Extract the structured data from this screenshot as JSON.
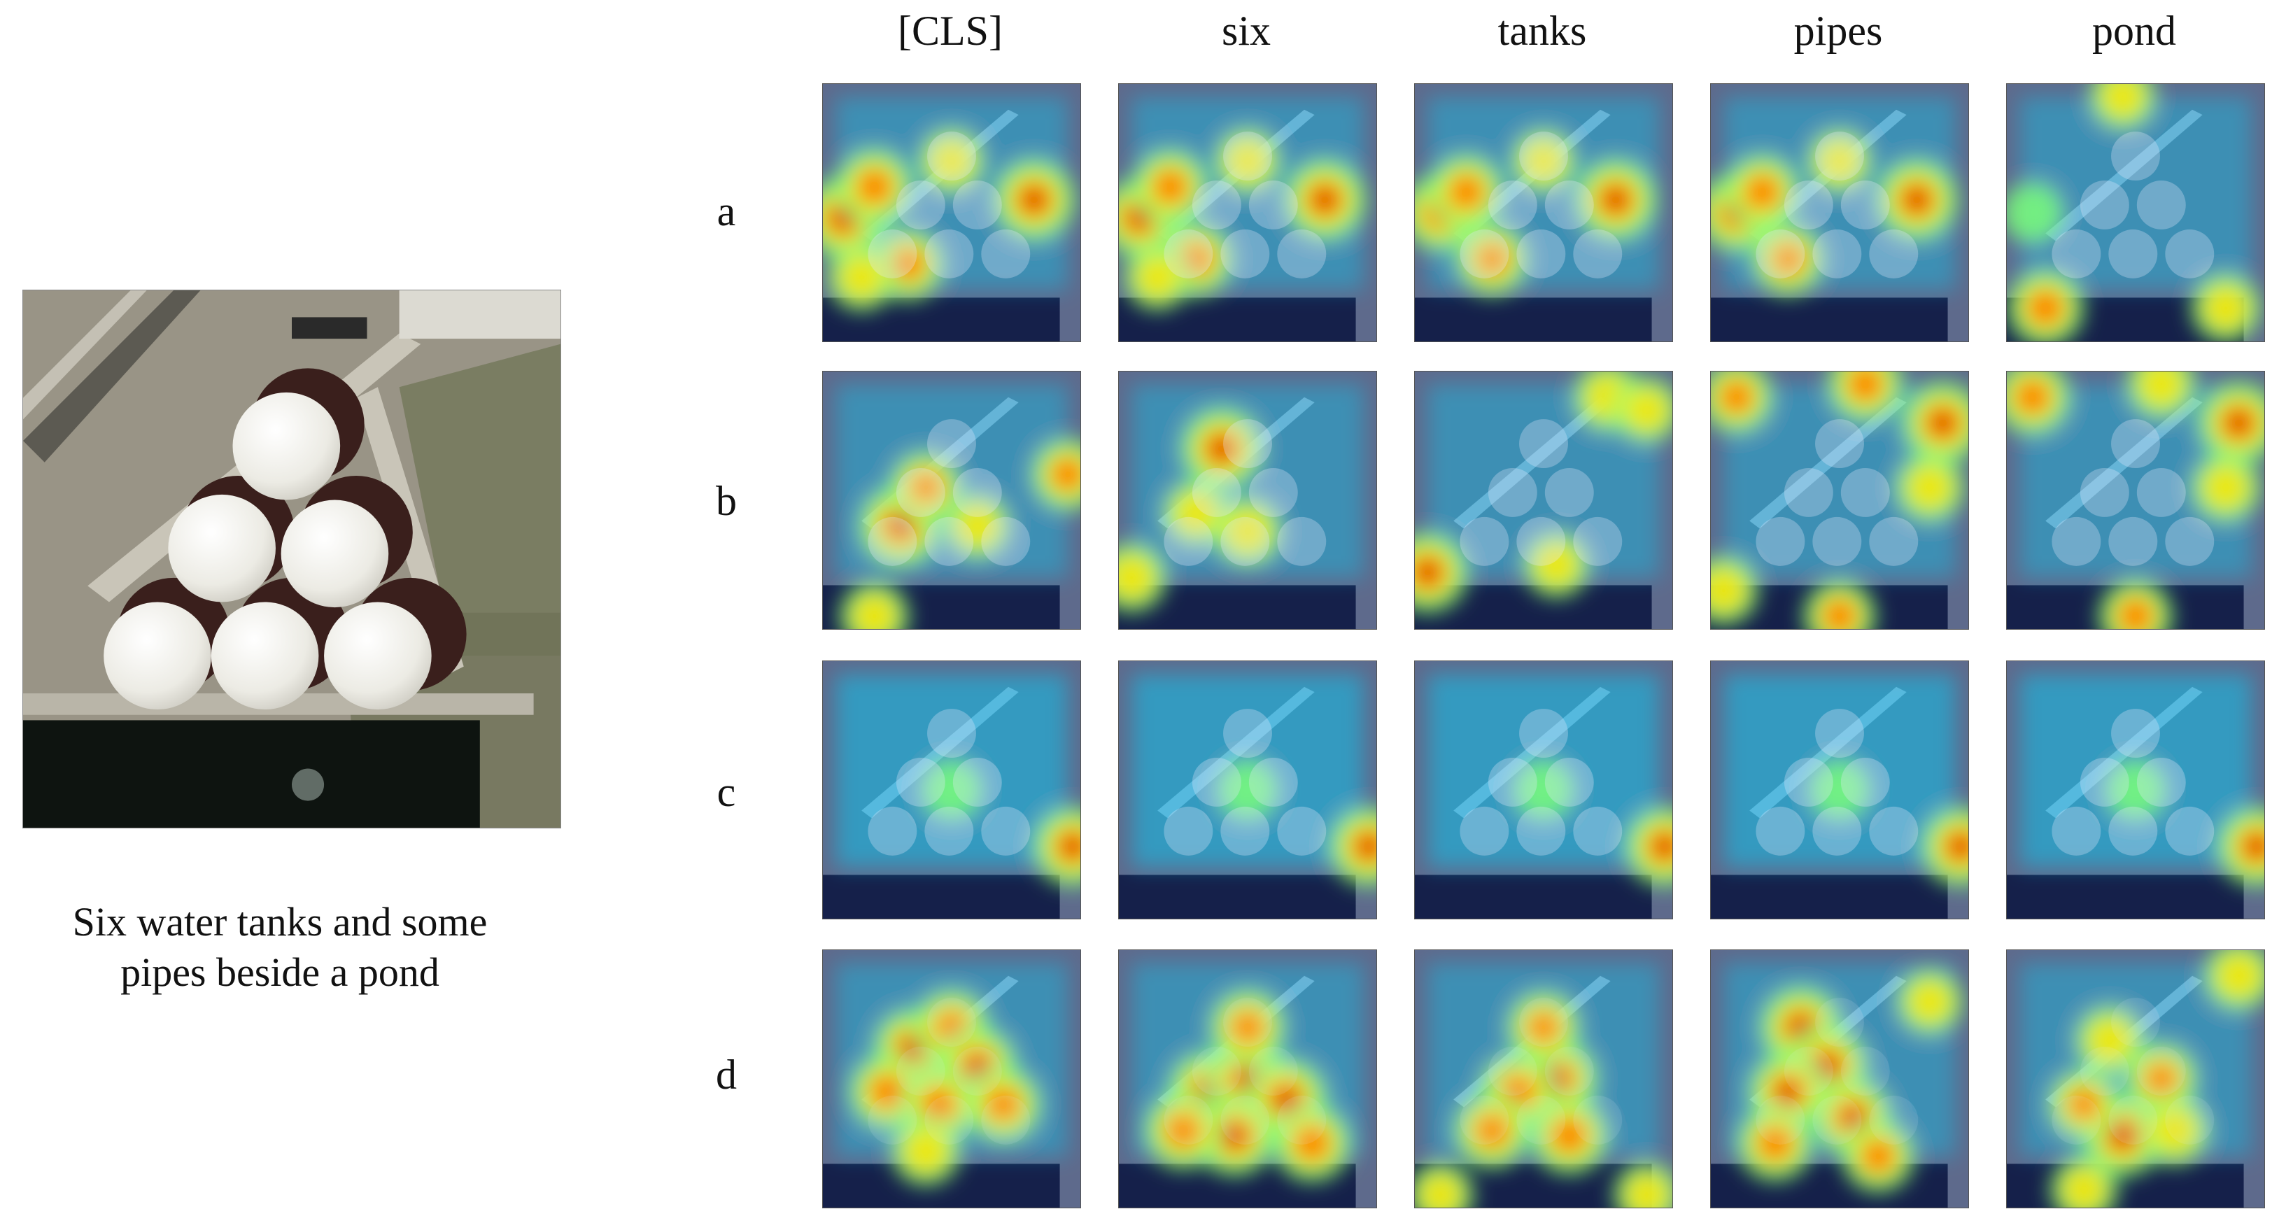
{
  "figure": {
    "source_caption_line1": "Six water tanks and some",
    "source_caption_line2": "pipes beside a pond",
    "columns": [
      "[CLS]",
      "six",
      "tanks",
      "pipes",
      "pond"
    ],
    "rows": [
      "a",
      "b",
      "c",
      "d"
    ],
    "heatmap_colormap": [
      "#00008c",
      "#0050ff",
      "#00d4ff",
      "#7dff7a",
      "#ffe600",
      "#ff6a00",
      "#c80000"
    ],
    "attention_peaks": {
      "a": [
        [
          {
            "u": 0.08,
            "v": 0.52,
            "w": 1.0
          },
          {
            "u": 0.2,
            "v": 0.4,
            "w": 0.85
          },
          {
            "u": 0.82,
            "v": 0.45,
            "w": 1.0
          },
          {
            "u": 0.33,
            "v": 0.7,
            "w": 0.7
          },
          {
            "u": 0.5,
            "v": 0.3,
            "w": 0.5
          },
          {
            "u": 0.15,
            "v": 0.75,
            "w": 0.55
          }
        ],
        [
          {
            "u": 0.08,
            "v": 0.52,
            "w": 0.9
          },
          {
            "u": 0.2,
            "v": 0.4,
            "w": 0.8
          },
          {
            "u": 0.8,
            "v": 0.45,
            "w": 1.0
          },
          {
            "u": 0.3,
            "v": 0.68,
            "w": 0.75
          },
          {
            "u": 0.5,
            "v": 0.3,
            "w": 0.5
          },
          {
            "u": 0.15,
            "v": 0.75,
            "w": 0.5
          }
        ],
        [
          {
            "u": 0.1,
            "v": 0.5,
            "w": 0.85
          },
          {
            "u": 0.2,
            "v": 0.42,
            "w": 0.8
          },
          {
            "u": 0.78,
            "v": 0.45,
            "w": 1.0
          },
          {
            "u": 0.3,
            "v": 0.68,
            "w": 0.7
          },
          {
            "u": 0.5,
            "v": 0.3,
            "w": 0.45
          }
        ],
        [
          {
            "u": 0.1,
            "v": 0.5,
            "w": 0.9
          },
          {
            "u": 0.2,
            "v": 0.42,
            "w": 0.8
          },
          {
            "u": 0.8,
            "v": 0.45,
            "w": 1.0
          },
          {
            "u": 0.3,
            "v": 0.68,
            "w": 0.7
          },
          {
            "u": 0.5,
            "v": 0.3,
            "w": 0.45
          }
        ],
        [
          {
            "u": 0.15,
            "v": 0.87,
            "w": 0.85
          },
          {
            "u": 0.85,
            "v": 0.87,
            "w": 0.6
          },
          {
            "u": 0.45,
            "v": 0.05,
            "w": 0.5
          },
          {
            "u": 0.1,
            "v": 0.5,
            "w": 0.35
          }
        ]
      ],
      "b": [
        [
          {
            "u": 0.3,
            "v": 0.6,
            "w": 1.0
          },
          {
            "u": 0.4,
            "v": 0.45,
            "w": 0.7
          },
          {
            "u": 0.95,
            "v": 0.4,
            "w": 0.7
          },
          {
            "u": 0.2,
            "v": 0.95,
            "w": 0.6
          },
          {
            "u": 0.6,
            "v": 0.6,
            "w": 0.5
          }
        ],
        [
          {
            "u": 0.4,
            "v": 0.3,
            "w": 1.0
          },
          {
            "u": 0.5,
            "v": 0.62,
            "w": 0.6
          },
          {
            "u": 0.05,
            "v": 0.8,
            "w": 0.6
          },
          {
            "u": 0.3,
            "v": 0.55,
            "w": 0.5
          }
        ],
        [
          {
            "u": 0.05,
            "v": 0.78,
            "w": 0.95
          },
          {
            "u": 0.75,
            "v": 0.1,
            "w": 0.6
          },
          {
            "u": 0.55,
            "v": 0.75,
            "w": 0.5
          },
          {
            "u": 0.9,
            "v": 0.15,
            "w": 0.5
          }
        ],
        [
          {
            "u": 0.9,
            "v": 0.2,
            "w": 1.0
          },
          {
            "u": 0.6,
            "v": 0.05,
            "w": 0.8
          },
          {
            "u": 0.1,
            "v": 0.1,
            "w": 0.7
          },
          {
            "u": 0.5,
            "v": 0.95,
            "w": 0.7
          },
          {
            "u": 0.05,
            "v": 0.85,
            "w": 0.6
          },
          {
            "u": 0.85,
            "v": 0.45,
            "w": 0.6
          }
        ],
        [
          {
            "u": 0.9,
            "v": 0.2,
            "w": 1.0
          },
          {
            "u": 0.1,
            "v": 0.1,
            "w": 0.8
          },
          {
            "u": 0.5,
            "v": 0.95,
            "w": 0.75
          },
          {
            "u": 0.85,
            "v": 0.45,
            "w": 0.6
          },
          {
            "u": 0.6,
            "v": 0.05,
            "w": 0.6
          }
        ]
      ],
      "c": [
        [
          {
            "u": 0.97,
            "v": 0.72,
            "w": 0.9
          },
          {
            "u": 0.5,
            "v": 0.5,
            "w": 0.35
          }
        ],
        [
          {
            "u": 0.97,
            "v": 0.72,
            "w": 0.9
          },
          {
            "u": 0.5,
            "v": 0.5,
            "w": 0.35
          }
        ],
        [
          {
            "u": 0.97,
            "v": 0.72,
            "w": 0.9
          },
          {
            "u": 0.5,
            "v": 0.5,
            "w": 0.35
          }
        ],
        [
          {
            "u": 0.97,
            "v": 0.72,
            "w": 0.9
          },
          {
            "u": 0.5,
            "v": 0.5,
            "w": 0.35
          }
        ],
        [
          {
            "u": 0.97,
            "v": 0.72,
            "w": 0.9
          },
          {
            "u": 0.5,
            "v": 0.5,
            "w": 0.35
          }
        ]
      ],
      "d": [
        [
          {
            "u": 0.35,
            "v": 0.38,
            "w": 0.9
          },
          {
            "u": 0.5,
            "v": 0.3,
            "w": 0.8
          },
          {
            "u": 0.6,
            "v": 0.45,
            "w": 0.9
          },
          {
            "u": 0.25,
            "v": 0.55,
            "w": 0.8
          },
          {
            "u": 0.45,
            "v": 0.6,
            "w": 0.8
          },
          {
            "u": 0.7,
            "v": 0.6,
            "w": 0.8
          },
          {
            "u": 0.4,
            "v": 0.78,
            "w": 0.6
          }
        ],
        [
          {
            "u": 0.35,
            "v": 0.55,
            "w": 1.0
          },
          {
            "u": 0.5,
            "v": 0.5,
            "w": 1.0
          },
          {
            "u": 0.65,
            "v": 0.58,
            "w": 1.0
          },
          {
            "u": 0.45,
            "v": 0.72,
            "w": 0.95
          },
          {
            "u": 0.25,
            "v": 0.7,
            "w": 0.85
          },
          {
            "u": 0.75,
            "v": 0.75,
            "w": 0.85
          },
          {
            "u": 0.5,
            "v": 0.3,
            "w": 0.8
          }
        ],
        [
          {
            "u": 0.55,
            "v": 0.5,
            "w": 1.0
          },
          {
            "u": 0.4,
            "v": 0.55,
            "w": 0.85
          },
          {
            "u": 0.5,
            "v": 0.3,
            "w": 0.7
          },
          {
            "u": 0.3,
            "v": 0.7,
            "w": 0.8
          },
          {
            "u": 0.6,
            "v": 0.72,
            "w": 0.85
          },
          {
            "u": 0.1,
            "v": 0.95,
            "w": 0.5
          },
          {
            "u": 0.9,
            "v": 0.95,
            "w": 0.5
          }
        ],
        [
          {
            "u": 0.35,
            "v": 0.3,
            "w": 1.0
          },
          {
            "u": 0.45,
            "v": 0.45,
            "w": 1.0
          },
          {
            "u": 0.3,
            "v": 0.55,
            "w": 0.9
          },
          {
            "u": 0.55,
            "v": 0.65,
            "w": 0.9
          },
          {
            "u": 0.25,
            "v": 0.75,
            "w": 0.8
          },
          {
            "u": 0.65,
            "v": 0.8,
            "w": 0.7
          },
          {
            "u": 0.85,
            "v": 0.2,
            "w": 0.5
          }
        ],
        [
          {
            "u": 0.45,
            "v": 0.72,
            "w": 1.0
          },
          {
            "u": 0.4,
            "v": 0.35,
            "w": 0.6
          },
          {
            "u": 0.6,
            "v": 0.5,
            "w": 0.7
          },
          {
            "u": 0.3,
            "v": 0.6,
            "w": 0.65
          },
          {
            "u": 0.65,
            "v": 0.7,
            "w": 0.6
          },
          {
            "u": 0.9,
            "v": 0.1,
            "w": 0.6
          },
          {
            "u": 0.3,
            "v": 0.93,
            "w": 0.55
          }
        ]
      ]
    }
  }
}
